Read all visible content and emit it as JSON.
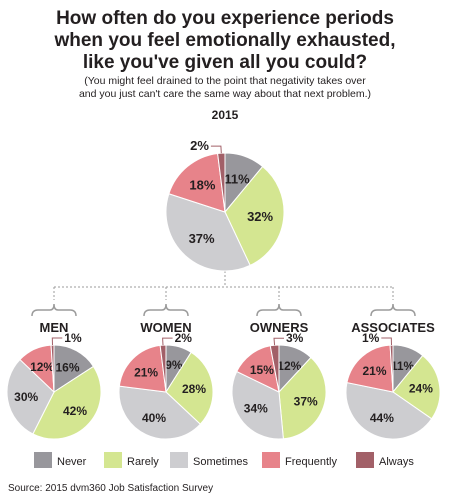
{
  "title_lines": [
    "How often do you experience periods",
    "when you feel emotionally exhausted,",
    "like you've given all you could?"
  ],
  "subtitle_lines": [
    "(You might feel drained to the point that negativity takes over",
    "and you just can't care the same way about that next problem.)"
  ],
  "source": "Source: 2015 dvm360 Job Satisfaction Survey",
  "colors": {
    "Never": "#98979c",
    "Rarely": "#d4e691",
    "Sometimes": "#cdcdd0",
    "Frequently": "#e7838a",
    "Always": "#a26068"
  },
  "chart_data": {
    "type": "pie",
    "categories": [
      "Never",
      "Rarely",
      "Sometimes",
      "Frequently",
      "Always"
    ],
    "legend": "bottom",
    "pies": [
      {
        "name": "2015",
        "values": [
          11,
          32,
          37,
          18,
          2
        ],
        "labels": [
          "11%",
          "32%",
          "37%",
          "18%",
          "2%"
        ]
      },
      {
        "name": "MEN",
        "values": [
          16,
          42,
          30,
          12,
          1
        ],
        "labels": [
          "16%",
          "42%",
          "30%",
          "12%",
          "1%"
        ]
      },
      {
        "name": "WOMEN",
        "values": [
          9,
          28,
          40,
          21,
          2
        ],
        "labels": [
          "9%",
          "28%",
          "40%",
          "21%",
          "2%"
        ]
      },
      {
        "name": "OWNERS",
        "values": [
          12,
          37,
          34,
          15,
          3
        ],
        "labels": [
          "12%",
          "37%",
          "34%",
          "15%",
          "3%"
        ]
      },
      {
        "name": "ASSOCIATES",
        "values": [
          11,
          24,
          44,
          21,
          1
        ],
        "labels": [
          "11%",
          "24%",
          "44%",
          "21%",
          "1%"
        ]
      }
    ]
  }
}
